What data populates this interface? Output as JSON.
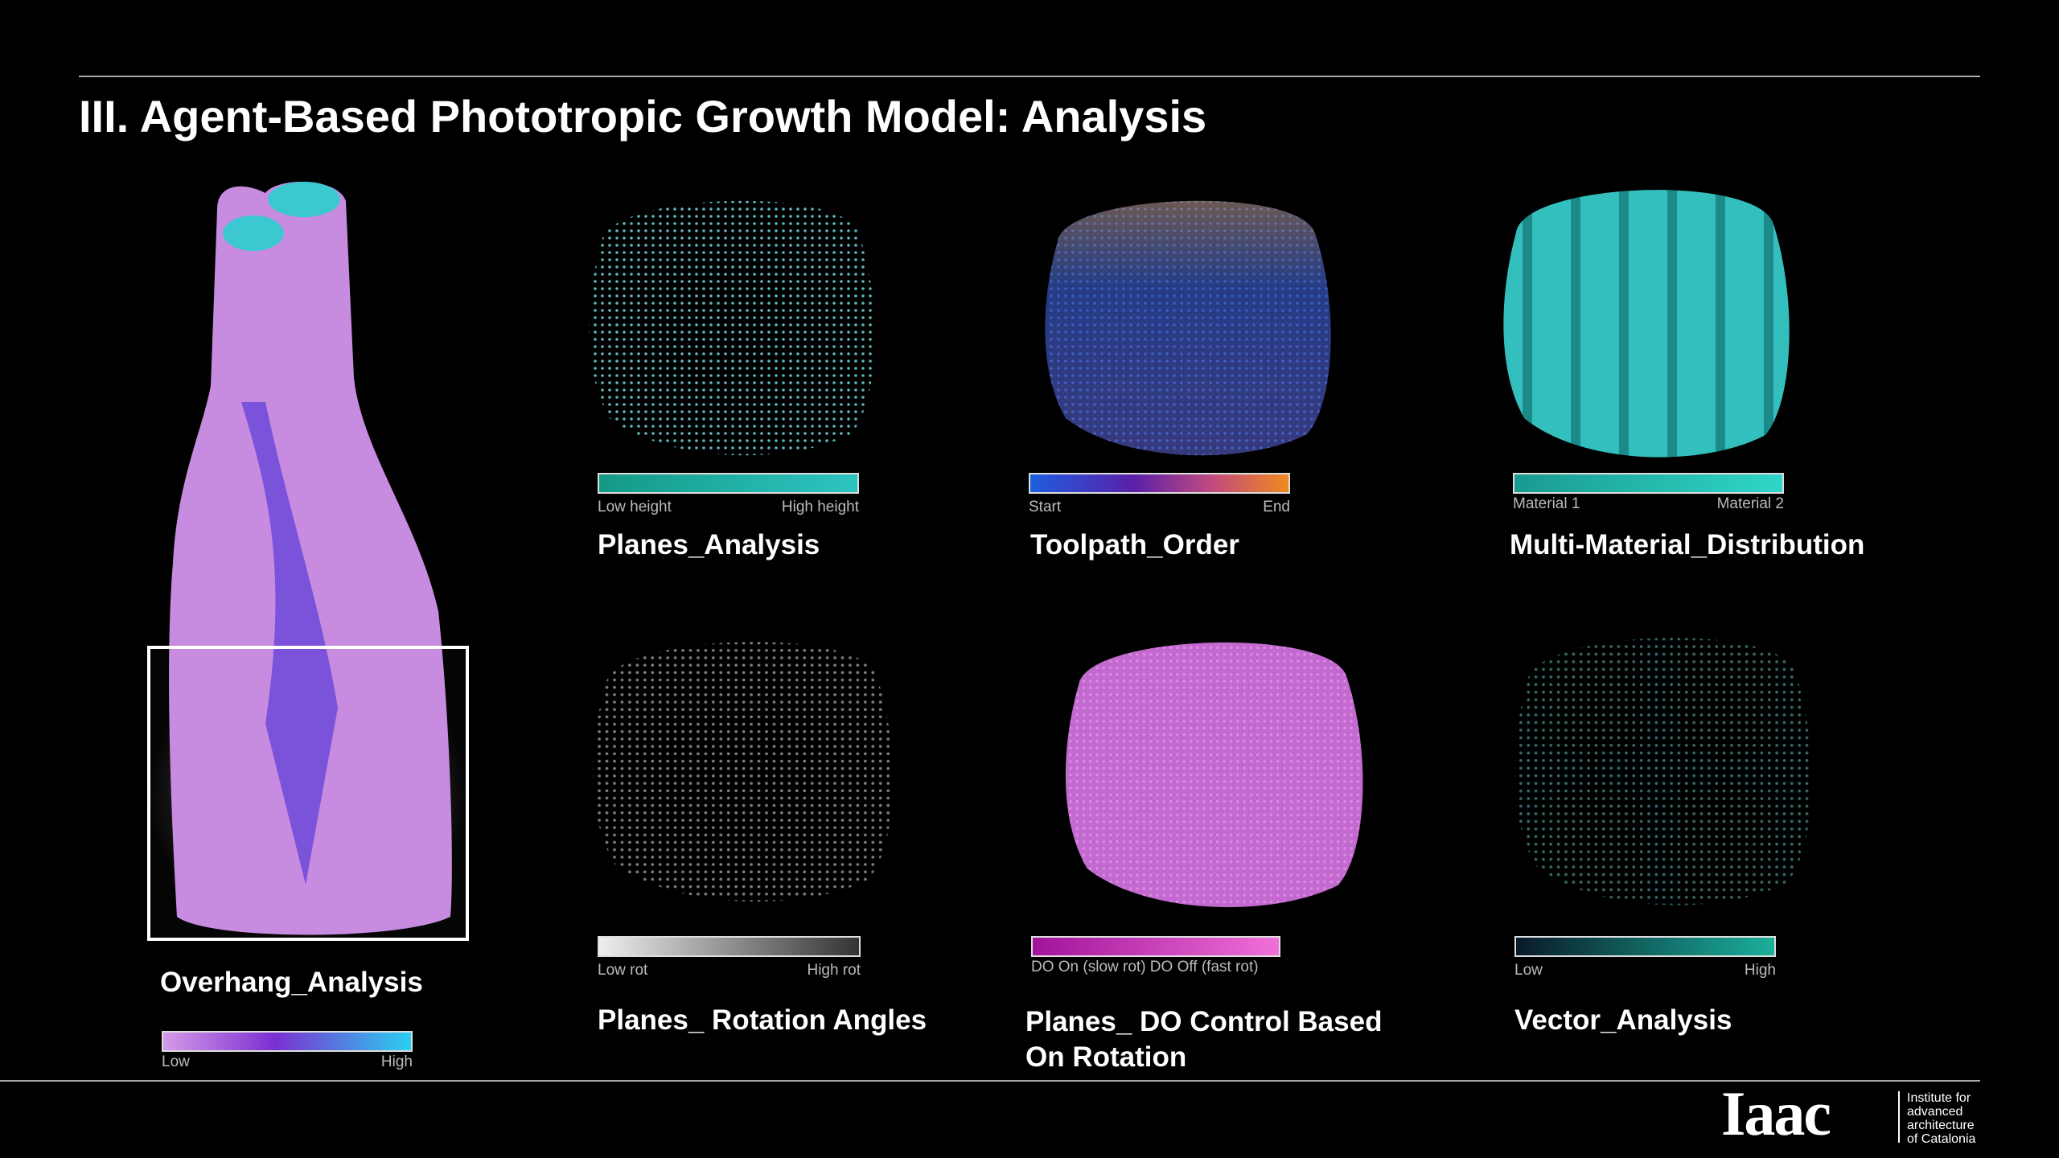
{
  "header": {
    "title": "III. Agent-Based Phototropic Growth Model: Analysis"
  },
  "panels": [
    {
      "caption": "Overhang_Analysis",
      "legend": {
        "low": "Low",
        "high": "High"
      }
    },
    {
      "caption": "Planes_Analysis",
      "legend": {
        "low": "Low height",
        "high": "High height"
      }
    },
    {
      "caption": "Toolpath_Order",
      "legend": {
        "low": "Start",
        "high": "End"
      }
    },
    {
      "caption": "Multi-Material_Distribution",
      "legend": {
        "low": "Material 1",
        "high": "Material 2"
      }
    },
    {
      "caption": "Planes_ Rotation Angles",
      "legend": {
        "low": "Low rot",
        "high": "High rot"
      }
    },
    {
      "caption": "Planes_ DO Control Based On Rotation",
      "legend": {
        "low": "DO On (slow rot) DO Off (fast rot)"
      }
    },
    {
      "caption": "Vector_Analysis",
      "legend": {
        "low": "Low",
        "high": "High"
      }
    }
  ],
  "logo": {
    "mark": "Iaac",
    "lines": [
      "Institute for",
      "advanced",
      "architecture",
      "of Catalonia"
    ]
  }
}
